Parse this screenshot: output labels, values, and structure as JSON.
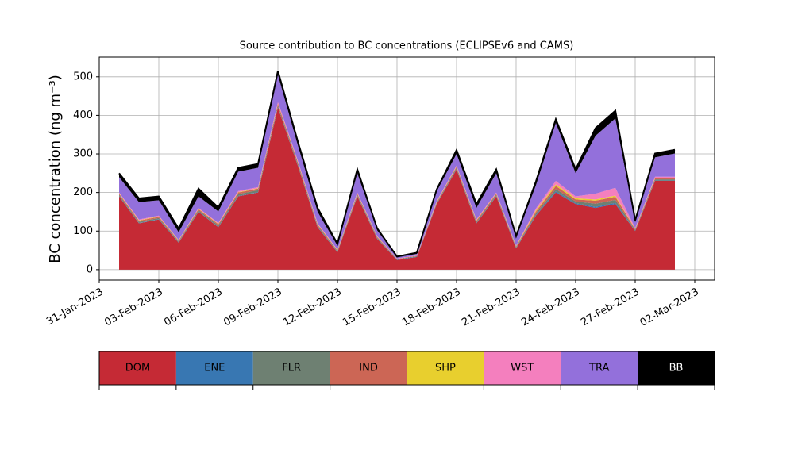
{
  "chart_data": {
    "type": "stacked_area",
    "title": "Source contribution to BC concentrations (ECLIPSEv6 and CAMS)",
    "y_label": "BC concentration (ng m⁻³)",
    "x": [
      "2023-02-01",
      "2023-02-02",
      "2023-02-03",
      "2023-02-04",
      "2023-02-05",
      "2023-02-06",
      "2023-02-07",
      "2023-02-08",
      "2023-02-09",
      "2023-02-10",
      "2023-02-11",
      "2023-02-12",
      "2023-02-13",
      "2023-02-14",
      "2023-02-15",
      "2023-02-16",
      "2023-02-17",
      "2023-02-18",
      "2023-02-19",
      "2023-02-20",
      "2023-02-21",
      "2023-02-22",
      "2023-02-23",
      "2023-02-24",
      "2023-02-25",
      "2023-02-26",
      "2023-02-27",
      "2023-02-28",
      "2023-03-01"
    ],
    "series": [
      {
        "name": "DOM",
        "color": "#c52a35",
        "values": [
          190,
          120,
          130,
          70,
          150,
          110,
          190,
          200,
          420,
          270,
          110,
          45,
          190,
          80,
          25,
          33,
          170,
          260,
          120,
          190,
          55,
          140,
          200,
          170,
          160,
          170,
          100,
          230,
          230
        ]
      },
      {
        "name": "ENE",
        "color": "#3877b2",
        "values": [
          1,
          1,
          1,
          1,
          1,
          1,
          1,
          1,
          1,
          1,
          1,
          1,
          1,
          1,
          1,
          1,
          1,
          1,
          1,
          1,
          1,
          2,
          3,
          2,
          3,
          3,
          1,
          1,
          1
        ]
      },
      {
        "name": "FLR",
        "color": "#6e8072",
        "values": [
          3,
          3,
          3,
          2,
          3,
          4,
          5,
          5,
          4,
          4,
          3,
          2,
          3,
          2,
          1,
          1,
          2,
          3,
          3,
          3,
          2,
          4,
          6,
          5,
          8,
          8,
          2,
          3,
          3
        ]
      },
      {
        "name": "IND",
        "color": "#cc6655",
        "values": [
          3,
          3,
          3,
          2,
          3,
          3,
          4,
          4,
          5,
          4,
          3,
          2,
          3,
          2,
          1,
          1,
          2,
          3,
          3,
          3,
          2,
          5,
          8,
          5,
          8,
          8,
          2,
          3,
          3
        ]
      },
      {
        "name": "SHP",
        "color": "#e8cf2e",
        "values": [
          1,
          1,
          1,
          1,
          1,
          1,
          1,
          1,
          1,
          1,
          1,
          1,
          1,
          1,
          0,
          0,
          1,
          1,
          1,
          1,
          1,
          3,
          4,
          3,
          3,
          3,
          1,
          1,
          1
        ]
      },
      {
        "name": "WST",
        "color": "#f47fbe",
        "values": [
          2,
          2,
          2,
          1,
          2,
          2,
          3,
          3,
          4,
          3,
          2,
          1,
          2,
          1,
          1,
          1,
          2,
          2,
          2,
          2,
          1,
          5,
          9,
          5,
          15,
          20,
          2,
          3,
          3
        ]
      },
      {
        "name": "TRA",
        "color": "#9370db",
        "values": [
          40,
          45,
          40,
          20,
          30,
          30,
          50,
          50,
          70,
          40,
          30,
          10,
          50,
          15,
          3,
          4,
          25,
          30,
          30,
          50,
          20,
          60,
          150,
          60,
          150,
          180,
          15,
          50,
          60
        ]
      },
      {
        "name": "BB",
        "color": "#000000",
        "values": [
          10,
          10,
          10,
          10,
          20,
          10,
          10,
          10,
          10,
          10,
          10,
          5,
          10,
          5,
          2,
          3,
          5,
          10,
          10,
          10,
          5,
          10,
          10,
          10,
          20,
          20,
          5,
          10,
          10
        ]
      }
    ],
    "xlim": [
      "2023-01-31",
      "2023-03-03"
    ],
    "xticks": [
      {
        "value": "2023-01-31",
        "label": "31-Jan-2023"
      },
      {
        "value": "2023-02-03",
        "label": "03-Feb-2023"
      },
      {
        "value": "2023-02-06",
        "label": "06-Feb-2023"
      },
      {
        "value": "2023-02-09",
        "label": "09-Feb-2023"
      },
      {
        "value": "2023-02-12",
        "label": "12-Feb-2023"
      },
      {
        "value": "2023-02-15",
        "label": "15-Feb-2023"
      },
      {
        "value": "2023-02-18",
        "label": "18-Feb-2023"
      },
      {
        "value": "2023-02-21",
        "label": "21-Feb-2023"
      },
      {
        "value": "2023-02-24",
        "label": "24-Feb-2023"
      },
      {
        "value": "2023-02-27",
        "label": "27-Feb-2023"
      },
      {
        "value": "2023-03-02",
        "label": "02-Mar-2023"
      }
    ],
    "ylim": [
      -27,
      551
    ],
    "yticks": [
      0,
      100,
      200,
      300,
      400,
      500
    ],
    "grid": true
  }
}
